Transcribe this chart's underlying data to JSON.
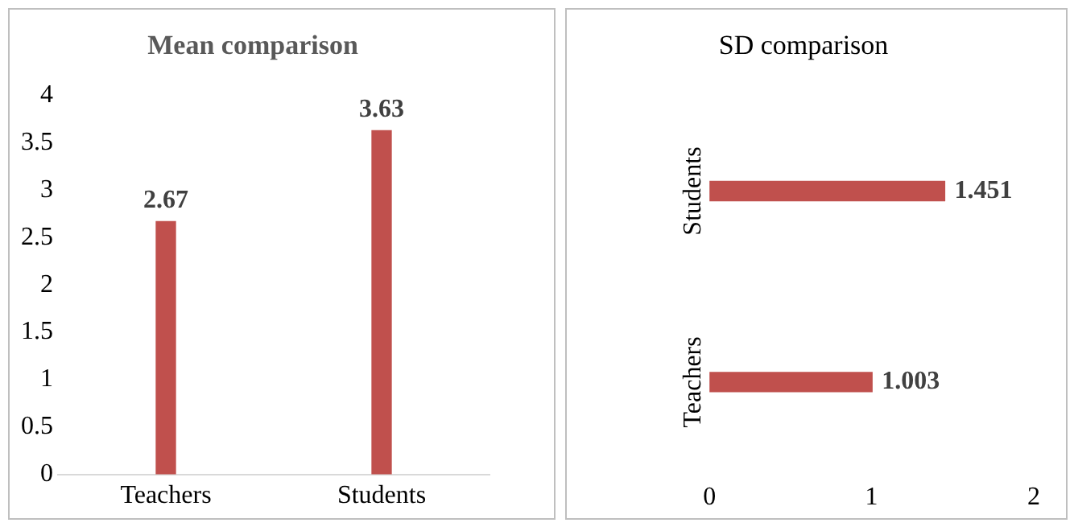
{
  "chart_data": [
    {
      "type": "bar",
      "title": "Mean comparison",
      "categories": [
        "Teachers",
        "Students"
      ],
      "values": [
        2.67,
        3.63
      ],
      "color": "#c0504d",
      "ylim": [
        0,
        4
      ],
      "yticks": [
        0,
        0.5,
        1,
        1.5,
        2,
        2.5,
        3,
        3.5,
        4
      ],
      "data_labels": true
    },
    {
      "type": "bar",
      "orientation": "horizontal",
      "title": "SD comparison",
      "categories": [
        "Students",
        "Teachers"
      ],
      "values": [
        1.451,
        1.003
      ],
      "color": "#c0504d",
      "xlim": [
        0,
        2
      ],
      "xticks": [
        0,
        1,
        2
      ],
      "data_labels": true
    }
  ]
}
